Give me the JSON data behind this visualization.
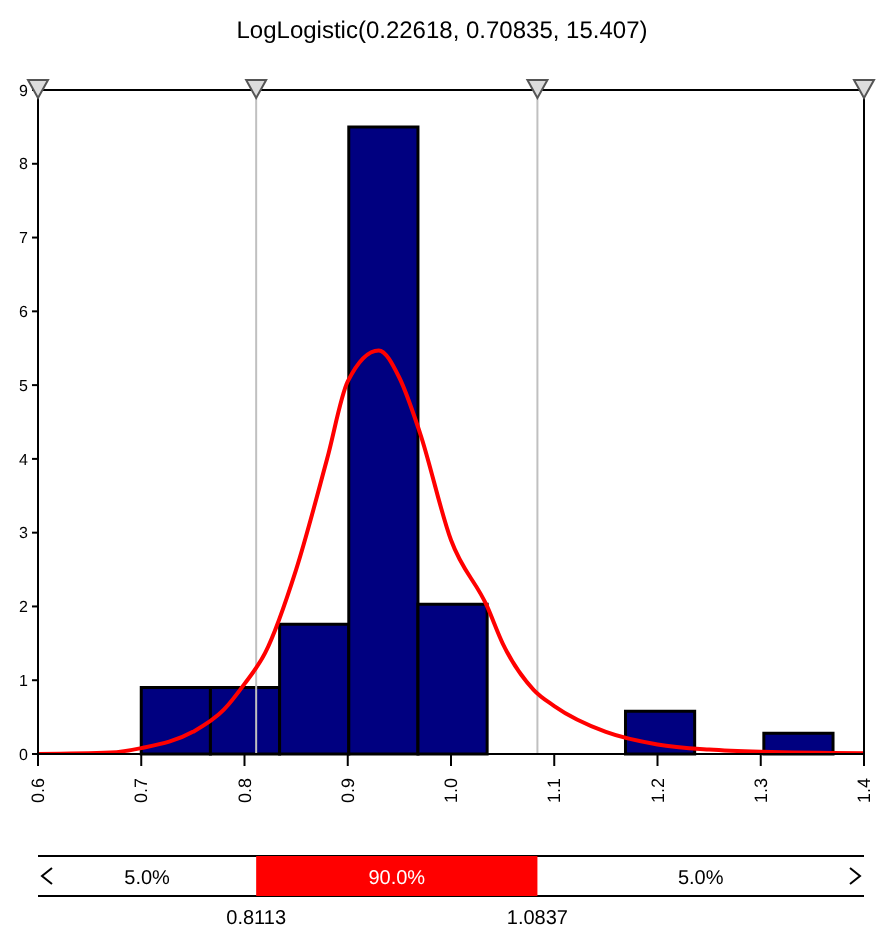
{
  "chart_data": {
    "type": "histogram",
    "title": "LogLogistic(0.22618, 0.70835, 15.407)",
    "bins": [
      0.7,
      0.767,
      0.834,
      0.901,
      0.968,
      1.035,
      1.102,
      1.169,
      1.236,
      1.303,
      1.37
    ],
    "values": [
      0.9,
      0.9,
      1.76,
      8.5,
      2.03,
      0,
      0,
      0.58,
      0,
      0.28
    ],
    "color": "#000080",
    "series": [
      {
        "type": "line",
        "color": "#ff0000",
        "x": [
          0.6,
          0.67,
          0.7,
          0.75,
          0.78,
          0.8,
          0.82,
          0.85,
          0.88,
          0.9,
          0.93,
          0.95,
          0.97,
          1.0,
          1.035,
          1.05,
          1.08,
          1.1,
          1.15,
          1.2,
          1.25,
          1.3,
          1.4
        ],
        "values": [
          0,
          0.02,
          0.08,
          0.3,
          0.6,
          0.95,
          1.37,
          2.5,
          4.0,
          5.05,
          5.47,
          5.1,
          4.35,
          2.9,
          2.0,
          1.5,
          0.87,
          0.65,
          0.3,
          0.13,
          0.06,
          0.03,
          0.01
        ]
      }
    ],
    "xlim": [
      0.6,
      1.4
    ],
    "xticks": [
      0.6,
      0.7,
      0.8,
      0.9,
      {
        "value": 1,
        "label": "1.0"
      },
      1.1,
      1.2,
      1.3,
      1.4
    ],
    "ylim": [
      0,
      9
    ],
    "yticks": [
      0,
      1,
      2,
      3,
      4,
      5,
      6,
      7,
      8,
      9
    ],
    "ref_lines": [
      {
        "axis": "x",
        "value": 0.8113,
        "color": "#c0c0c0"
      },
      {
        "axis": "x",
        "value": 1.0837,
        "color": "#c0c0c0"
      }
    ],
    "annotations": [
      "5.0%",
      "90.0%",
      "5.0%",
      "0.8113",
      "1.0837"
    ]
  }
}
